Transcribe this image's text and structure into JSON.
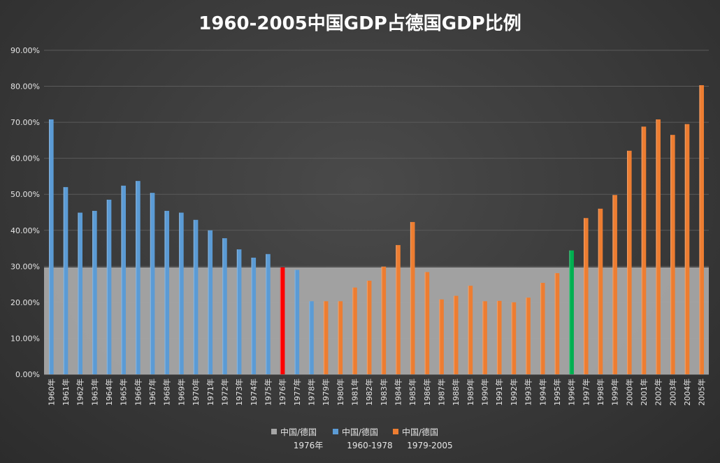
{
  "chart_data": {
    "type": "bar",
    "title": "1960-2005中国GDP占德国GDP比例",
    "ylim": [
      0,
      0.9
    ],
    "y_ticks": [
      "0.00%",
      "10.00%",
      "20.00%",
      "30.00%",
      "40.00%",
      "50.00%",
      "60.00%",
      "70.00%",
      "80.00%",
      "90.00%"
    ],
    "grid": true,
    "legend_position": "bottom",
    "categories": [
      "1960年",
      "1961年",
      "1962年",
      "1963年",
      "1964年",
      "1965年",
      "1966年",
      "1967年",
      "1968年",
      "1969年",
      "1970年",
      "1971年",
      "1972年",
      "1973年",
      "1974年",
      "1975年",
      "1976年",
      "1977年",
      "1978年",
      "1979年",
      "1980年",
      "1981年",
      "1982年",
      "1983年",
      "1984年",
      "1985年",
      "1986年",
      "1987年",
      "1988年",
      "1989年",
      "1990年",
      "1991年",
      "1992年",
      "1993年",
      "1994年",
      "1995年",
      "1996年",
      "1997年",
      "1998年",
      "1999年",
      "2000年",
      "2001年",
      "2002年",
      "2003年",
      "2004年",
      "2005年"
    ],
    "series": [
      {
        "name": "中国/德国 1976年",
        "kind": "area",
        "color": "#a6a6a6",
        "values": [
          0.297,
          0.297,
          0.297,
          0.297,
          0.297,
          0.297,
          0.297,
          0.297,
          0.297,
          0.297,
          0.297,
          0.297,
          0.297,
          0.297,
          0.297,
          0.297,
          0.297,
          0.297,
          0.297,
          0.297,
          0.297,
          0.297,
          0.297,
          0.297,
          0.297,
          0.297,
          0.297,
          0.297,
          0.297,
          0.297,
          0.297,
          0.297,
          0.297,
          0.297,
          0.297,
          0.297,
          0.297,
          0.297,
          0.297,
          0.297,
          0.297,
          0.297,
          0.297,
          0.297,
          0.297,
          0.297
        ]
      },
      {
        "name": "中国/德国 1960-1978",
        "kind": "bar",
        "color": "#5b9bd5",
        "values": [
          0.708,
          0.52,
          0.449,
          0.454,
          0.485,
          0.524,
          0.537,
          0.504,
          0.454,
          0.449,
          0.429,
          0.4,
          0.378,
          0.347,
          0.324,
          0.334,
          0.297,
          0.29,
          0.203,
          null,
          null,
          null,
          null,
          null,
          null,
          null,
          null,
          null,
          null,
          null,
          null,
          null,
          null,
          null,
          null,
          null,
          null,
          null,
          null,
          null,
          null,
          null,
          null,
          null,
          null,
          null
        ]
      },
      {
        "name": "中国/德国 1979-2005",
        "kind": "bar",
        "color": "#ed7d31",
        "values": [
          null,
          null,
          null,
          null,
          null,
          null,
          null,
          null,
          null,
          null,
          null,
          null,
          null,
          null,
          null,
          null,
          null,
          null,
          null,
          0.203,
          0.203,
          0.241,
          0.26,
          0.299,
          0.359,
          0.423,
          0.284,
          0.208,
          0.218,
          0.246,
          0.203,
          0.204,
          0.2,
          0.213,
          0.254,
          0.281,
          0.344,
          0.434,
          0.46,
          0.498,
          0.621,
          0.688,
          0.708,
          0.665,
          0.695,
          0.803
        ]
      }
    ],
    "highlights": [
      {
        "category": "1976年",
        "color": "#ff0000"
      },
      {
        "category": "1996年",
        "color": "#00b050"
      }
    ],
    "legend": [
      {
        "line1": "中国/德国",
        "line2": "1976年",
        "color": "#a6a6a6"
      },
      {
        "line1": "中国/德国",
        "line2": "1960-1978",
        "color": "#5b9bd5"
      },
      {
        "line1": "中国/德国",
        "line2": "1979-2005",
        "color": "#ed7d31"
      }
    ]
  }
}
